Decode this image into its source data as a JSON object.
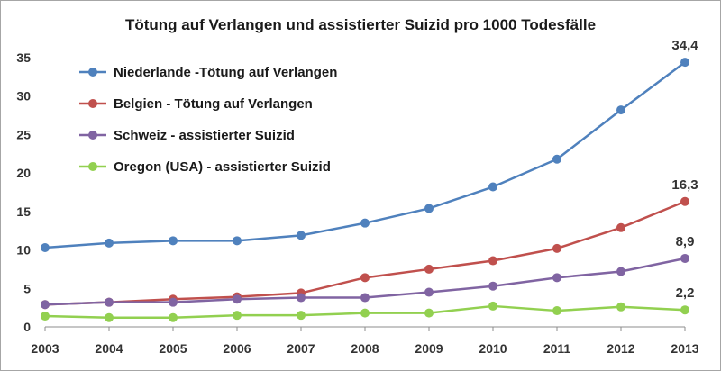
{
  "chart_data": {
    "type": "line",
    "title": "Tötung auf Verlangen und assistierter Suizid pro 1000 Todesfälle",
    "xlabel": "",
    "ylabel": "",
    "x": [
      "2003",
      "2004",
      "2005",
      "2006",
      "2007",
      "2008",
      "2009",
      "2010",
      "2011",
      "2012",
      "2013"
    ],
    "ylim": [
      0,
      35
    ],
    "yticks": [
      0,
      5,
      10,
      15,
      20,
      25,
      30,
      35
    ],
    "grid": false,
    "legend_position": "top-left",
    "series": [
      {
        "name": "Niederlande -Tötung auf Verlangen",
        "color": "#4f81bd",
        "values": [
          10.3,
          10.9,
          11.2,
          11.2,
          11.9,
          13.5,
          15.4,
          18.2,
          21.8,
          28.2,
          34.4
        ],
        "end_label": "34,4"
      },
      {
        "name": "Belgien - Tötung auf Verlangen",
        "color": "#c0504d",
        "values": [
          2.9,
          3.2,
          3.6,
          3.9,
          4.4,
          6.4,
          7.5,
          8.6,
          10.2,
          12.9,
          16.3
        ],
        "end_label": "16,3"
      },
      {
        "name": "Schweiz - assistierter Suizid",
        "color": "#8064a2",
        "values": [
          2.9,
          3.2,
          3.2,
          3.6,
          3.8,
          3.8,
          4.5,
          5.3,
          6.4,
          7.2,
          8.9
        ],
        "end_label": "8,9"
      },
      {
        "name": "Oregon (USA) - assistierter Suizid",
        "color": "#92d050",
        "values": [
          1.4,
          1.2,
          1.2,
          1.5,
          1.5,
          1.8,
          1.8,
          2.7,
          2.1,
          2.6,
          2.2
        ],
        "end_label": "2,2"
      }
    ]
  }
}
